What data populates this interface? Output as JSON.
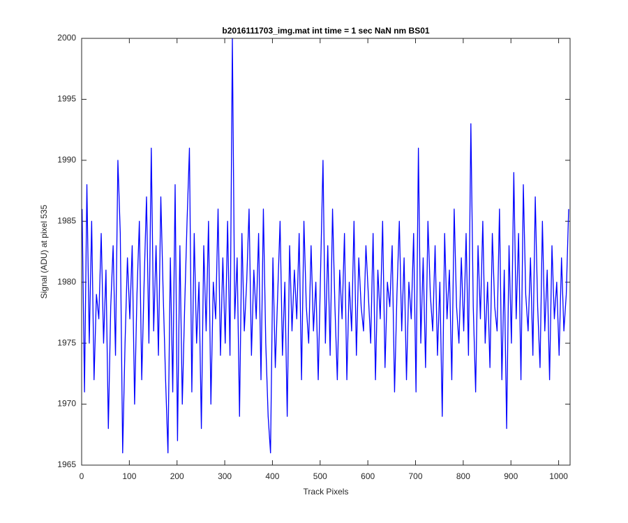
{
  "chart_data": {
    "type": "line",
    "title": "b2016111703_img.mat int time = 1 sec  NaN nm BS01",
    "xlabel": "Track Pixels",
    "ylabel": "Signal (ADU) at pixel 535",
    "xlim": [
      0,
      1024
    ],
    "ylim": [
      1965,
      2000
    ],
    "xticks": [
      0,
      100,
      200,
      300,
      400,
      500,
      600,
      700,
      800,
      900,
      1000
    ],
    "yticks": [
      1965,
      1970,
      1975,
      1980,
      1985,
      1990,
      1995,
      2000
    ],
    "series": [
      {
        "color": "#0000ff",
        "x": [
          1,
          6,
          11,
          16,
          21,
          26,
          31,
          36,
          41,
          46,
          51,
          56,
          61,
          66,
          71,
          76,
          81,
          86,
          91,
          96,
          101,
          106,
          111,
          116,
          121,
          126,
          131,
          136,
          141,
          146,
          151,
          156,
          161,
          166,
          171,
          176,
          181,
          186,
          191,
          196,
          201,
          206,
          211,
          216,
          221,
          226,
          231,
          236,
          241,
          246,
          251,
          256,
          261,
          266,
          271,
          276,
          281,
          286,
          291,
          296,
          301,
          306,
          311,
          316,
          321,
          326,
          331,
          336,
          341,
          346,
          351,
          356,
          361,
          366,
          371,
          376,
          381,
          386,
          391,
          396,
          401,
          406,
          411,
          416,
          421,
          426,
          431,
          436,
          441,
          446,
          451,
          456,
          461,
          466,
          471,
          476,
          481,
          486,
          491,
          496,
          501,
          506,
          511,
          516,
          521,
          526,
          531,
          536,
          541,
          546,
          551,
          556,
          561,
          566,
          571,
          576,
          581,
          586,
          591,
          596,
          601,
          606,
          611,
          616,
          621,
          626,
          631,
          636,
          641,
          646,
          651,
          656,
          661,
          666,
          671,
          676,
          681,
          686,
          691,
          696,
          701,
          706,
          711,
          716,
          721,
          726,
          731,
          736,
          741,
          746,
          751,
          756,
          761,
          766,
          771,
          776,
          781,
          786,
          791,
          796,
          801,
          806,
          811,
          816,
          821,
          826,
          831,
          836,
          841,
          846,
          851,
          856,
          861,
          866,
          871,
          876,
          881,
          886,
          891,
          896,
          901,
          906,
          911,
          916,
          921,
          926,
          931,
          936,
          941,
          946,
          951,
          956,
          961,
          966,
          971,
          976,
          981,
          986,
          991,
          996,
          1001,
          1006,
          1011,
          1016,
          1021
        ],
        "values": [
          1986,
          1971,
          1988,
          1975,
          1985,
          1972,
          1979,
          1977,
          1984,
          1975,
          1981,
          1968,
          1978,
          1983,
          1974,
          1990,
          1984,
          1966,
          1975,
          1982,
          1977,
          1983,
          1970,
          1979,
          1985,
          1972,
          1980,
          1987,
          1975,
          1991,
          1976,
          1983,
          1974,
          1987,
          1979,
          1972,
          1966,
          1982,
          1971,
          1988,
          1967,
          1983,
          1970,
          1978,
          1985,
          1991,
          1971,
          1984,
          1975,
          1980,
          1968,
          1983,
          1976,
          1985,
          1970,
          1980,
          1977,
          1986,
          1974,
          1982,
          1975,
          1985,
          1974,
          2000,
          1977,
          1982,
          1969,
          1984,
          1976,
          1980,
          1986,
          1974,
          1981,
          1977,
          1984,
          1972,
          1986,
          1975,
          1969,
          1966,
          1982,
          1973,
          1979,
          1985,
          1974,
          1980,
          1969,
          1983,
          1976,
          1981,
          1977,
          1984,
          1972,
          1985,
          1978,
          1975,
          1983,
          1976,
          1980,
          1972,
          1981,
          1990,
          1975,
          1983,
          1974,
          1986,
          1978,
          1972,
          1981,
          1977,
          1984,
          1972,
          1980,
          1976,
          1985,
          1974,
          1982,
          1978,
          1976,
          1983,
          1979,
          1975,
          1984,
          1972,
          1981,
          1977,
          1985,
          1973,
          1980,
          1978,
          1983,
          1971,
          1979,
          1985,
          1976,
          1982,
          1972,
          1980,
          1977,
          1984,
          1971,
          1991,
          1975,
          1982,
          1973,
          1985,
          1979,
          1976,
          1983,
          1974,
          1980,
          1969,
          1984,
          1977,
          1981,
          1972,
          1986,
          1978,
          1975,
          1982,
          1976,
          1984,
          1974,
          1993,
          1978,
          1971,
          1983,
          1977,
          1985,
          1975,
          1980,
          1973,
          1984,
          1978,
          1976,
          1986,
          1972,
          1981,
          1968,
          1983,
          1975,
          1989,
          1977,
          1984,
          1972,
          1988,
          1979,
          1976,
          1982,
          1974,
          1987,
          1978,
          1973,
          1985,
          1976,
          1981,
          1972,
          1983,
          1977,
          1980,
          1974,
          1982,
          1976,
          1979,
          1986
        ]
      }
    ]
  }
}
